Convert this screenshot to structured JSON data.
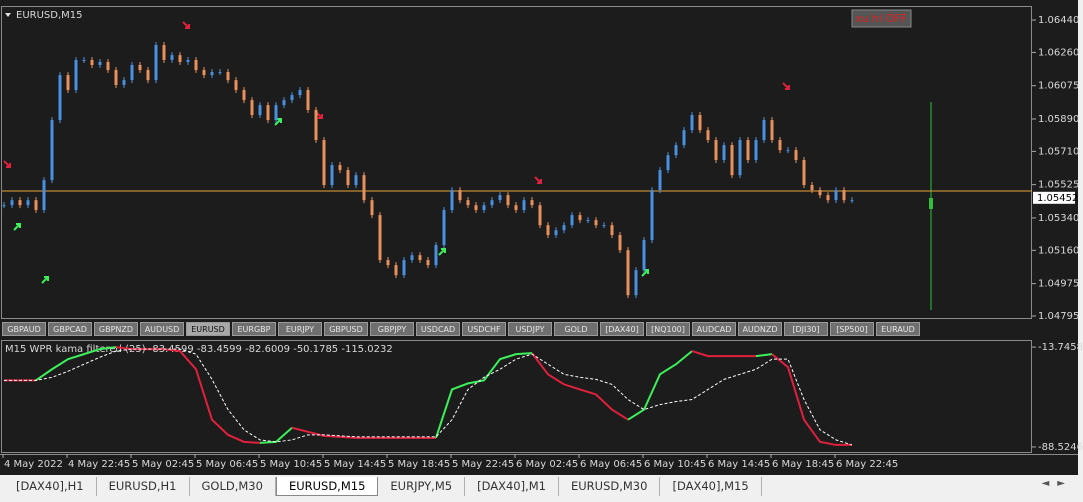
{
  "window": {
    "chart_label": "EURUSD,M15",
    "indicator_status": "xu hl OFF"
  },
  "chart_data": [
    {
      "type": "candlestick",
      "up_color": "#4a8fe0",
      "down_color": "#e8915c",
      "closes": [
        1.05411,
        1.05439,
        1.05411,
        1.05439,
        1.05384,
        1.0555,
        1.05884,
        1.06134,
        1.06051,
        1.06218,
        1.06218,
        1.0619,
        1.06207,
        1.06162,
        1.06079,
        1.06106,
        1.0619,
        1.06162,
        1.06106,
        1.06301,
        1.06218,
        1.06245,
        1.06207,
        1.06218,
        1.06162,
        1.06134,
        1.06151,
        1.06151,
        1.06106,
        1.06051,
        1.05995,
        1.05912,
        1.05967,
        1.05884,
        1.05967,
        1.05995,
        1.06023,
        1.06051,
        1.0594,
        1.05773,
        1.05523,
        1.05634,
        1.05606,
        1.05523,
        1.05578,
        1.05439,
        1.05356,
        1.05106,
        1.05078,
        1.05022,
        1.05106,
        1.05133,
        1.05106,
        1.05078,
        1.05189,
        1.05384,
        1.05495,
        1.05439,
        1.05411,
        1.05384,
        1.05411,
        1.05439,
        1.05467,
        1.05411,
        1.05384,
        1.05439,
        1.05411,
        1.053,
        1.05245,
        1.05272,
        1.053,
        1.05356,
        1.05328,
        1.05328,
        1.053,
        1.053,
        1.05245,
        1.05161,
        1.04911,
        1.0505,
        1.05217,
        1.05495,
        1.05606,
        1.05689,
        1.05745,
        1.05828,
        1.05912,
        1.05828,
        1.05773,
        1.05662,
        1.05745,
        1.05578,
        1.05773,
        1.05662,
        1.05773,
        1.05884,
        1.05773,
        1.05717,
        1.05717,
        1.05662,
        1.05523,
        1.05495,
        1.05467,
        1.05439,
        1.05495,
        1.05439,
        1.05439
      ],
      "ylim": [
        1.04784,
        1.06518
      ],
      "yticks": [
        {
          "value": 1.0644,
          "label": "1.06440"
        },
        {
          "value": 1.0626,
          "label": "1.06260"
        },
        1.06075,
        {
          "value": 1.0589,
          "label": "1.05890"
        },
        {
          "value": 1.0571,
          "label": "1.05710"
        },
        1.05525,
        {
          "value": 1.0534,
          "label": "1.05340"
        },
        {
          "value": 1.0516,
          "label": "1.05160"
        },
        1.04975,
        1.04795
      ],
      "current_price": 1.05452,
      "bid_line": 1.0549,
      "bid_line_color": "#e8a33a",
      "x": [
        "4 May 2022",
        "4 May 22:45",
        "5 May 02:45",
        "5 May 06:45",
        "5 May 10:45",
        "5 May 14:45",
        "5 May 18:45",
        "5 May 22:45",
        "6 May 02:45",
        "6 May 06:45",
        "6 May 10:45",
        "6 May 14:45",
        "6 May 18:45",
        "6 May 22:45"
      ]
    },
    {
      "type": "line",
      "title": "M15  WPR kama filtered (25) -83.4599 -83.4599 -82.6009 -50.1785 -115.0232",
      "ylim": [
        -92.3,
        -8.46
      ],
      "yticks": [
        -13.7458,
        -88.5246
      ],
      "series": [
        {
          "color": "#3cf05a",
          "down_color": "#e0203c",
          "style": "solid",
          "values": [
            -38.67,
            -38.67,
            -38.67,
            -30.36,
            -22.81,
            -19.03,
            -15.26,
            -13.75,
            -15.26,
            -15.26,
            -15.26,
            -16.77,
            -30.36,
            -68.13,
            -79.46,
            -84.74,
            -85.5,
            -84.74,
            -74.17,
            -77.19,
            -80.21,
            -80.97,
            -81.72,
            -81.72,
            -81.72,
            -81.72,
            -81.72,
            -81.72,
            -45.47,
            -40.94,
            -38.67,
            -22.81,
            -19.03,
            -18.28,
            -34.14,
            -41.69,
            -45.47,
            -49.24,
            -60.57,
            -68.13,
            -60.57,
            -34.14,
            -26.59,
            -16.77,
            -20.54,
            -20.54,
            -20.54,
            -20.54,
            -19.03,
            -28.85,
            -68.13,
            -84.74,
            -87.01,
            -87.01
          ]
        },
        {
          "color": "#ffffff",
          "style": "dashed",
          "values": [
            -38.67,
            -38.67,
            -38.67,
            -36.4,
            -31.87,
            -26.59,
            -21.3,
            -16.77,
            -15.26,
            -15.26,
            -15.26,
            -15.26,
            -19.03,
            -37.92,
            -60.57,
            -75.68,
            -83.23,
            -84.74,
            -83.23,
            -79.46,
            -79.46,
            -80.21,
            -80.97,
            -80.97,
            -80.97,
            -80.97,
            -80.97,
            -80.97,
            -68.13,
            -45.47,
            -36.4,
            -30.36,
            -22.81,
            -19.03,
            -26.59,
            -34.14,
            -36.4,
            -37.92,
            -41.69,
            -53.02,
            -60.57,
            -56.8,
            -54.53,
            -53.02,
            -45.47,
            -37.92,
            -34.14,
            -30.36,
            -22.81,
            -22.81,
            -53.02,
            -75.68,
            -83.23,
            -87.01
          ]
        }
      ]
    }
  ],
  "symbol_tabs": [
    "GBPAUD",
    "GBPCAD",
    "GBPNZD",
    "AUDUSD",
    "EURUSD",
    "EURGBP",
    "EURJPY",
    "GBPUSD",
    "GBPJPY",
    "USDCAD",
    "USDCHF",
    "USDJPY",
    "GOLD",
    "[DAX40]",
    "[NQ100]",
    "AUDCAD",
    "AUDNZD",
    "[DJI30]",
    "[SP500]",
    "EURAUD"
  ],
  "active_symbol_tab": "EURUSD",
  "window_tabs": [
    "[DAX40],H1",
    "EURUSD,H1",
    "GOLD,M30",
    "EURUSD,M15",
    "EURJPY,M5",
    "[DAX40],M1",
    "EURUSD,M30",
    "[DAX40],M15"
  ],
  "active_window_tab": "EURUSD,M15"
}
